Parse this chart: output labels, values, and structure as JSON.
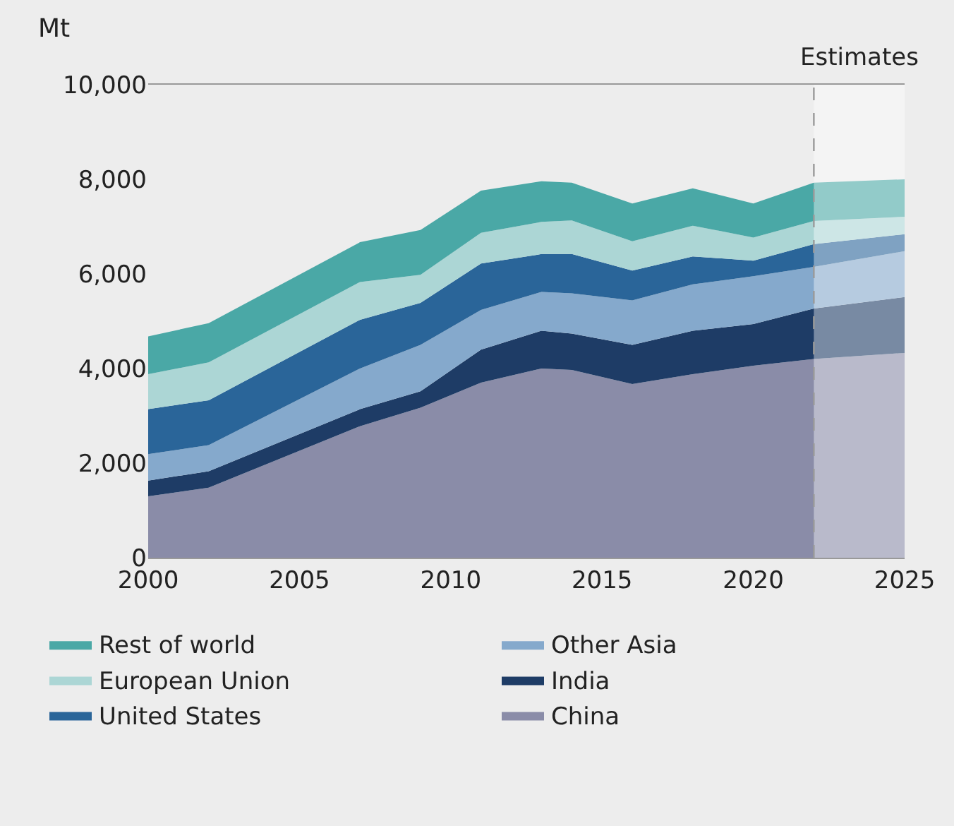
{
  "chart_data": {
    "type": "area",
    "stacked": true,
    "ylabel": "Mt",
    "x": [
      2000,
      2002,
      2007,
      2009,
      2011,
      2013,
      2014,
      2016,
      2018,
      2020,
      2022,
      2025
    ],
    "series": [
      {
        "name": "China",
        "color": "#8a8ca8",
        "values": [
          1300,
          1480,
          2780,
          3170,
          3700,
          4000,
          3970,
          3670,
          3880,
          4060,
          4200,
          4330
        ]
      },
      {
        "name": "India",
        "color": "#1e3c66",
        "values": [
          330,
          350,
          360,
          350,
          700,
          800,
          770,
          830,
          920,
          880,
          1070,
          1180
        ]
      },
      {
        "name": "Other Asia",
        "color": "#85a9cc",
        "values": [
          560,
          550,
          860,
          980,
          840,
          820,
          850,
          940,
          980,
          1010,
          880,
          970
        ]
      },
      {
        "name": "United States",
        "color": "#2a6599",
        "values": [
          950,
          950,
          1030,
          890,
          980,
          800,
          830,
          630,
          590,
          330,
          480,
          360
        ]
      },
      {
        "name": "European Union",
        "color": "#acd6d5",
        "values": [
          740,
          800,
          800,
          590,
          650,
          680,
          710,
          620,
          650,
          490,
          490,
          370
        ]
      },
      {
        "name": "Rest of world",
        "color": "#4aa8a6",
        "values": [
          800,
          830,
          840,
          950,
          890,
          860,
          800,
          800,
          790,
          720,
          810,
          790
        ]
      }
    ],
    "xlim": [
      2000,
      2025
    ],
    "xticks": [
      2000,
      2005,
      2010,
      2015,
      2020,
      2025
    ],
    "ylim": [
      0,
      10000
    ],
    "yticks": [
      0,
      {
        "value": 2000,
        "label": "2,000"
      },
      {
        "value": 4000,
        "label": "4,000"
      },
      {
        "value": 6000,
        "label": "6,000"
      },
      {
        "value": 8000,
        "label": "8,000"
      },
      {
        "value": 10000,
        "label": "10,000"
      }
    ],
    "bands": [
      {
        "axis": "x",
        "from": 2022,
        "to": 2025,
        "label": "Estimates",
        "color": "#ffffff"
      }
    ],
    "ref_lines": [
      {
        "axis": "x",
        "value": 2022,
        "label": null,
        "color": "#9a9a9a",
        "line_style": "dashed"
      }
    ],
    "legend": "bottom"
  }
}
